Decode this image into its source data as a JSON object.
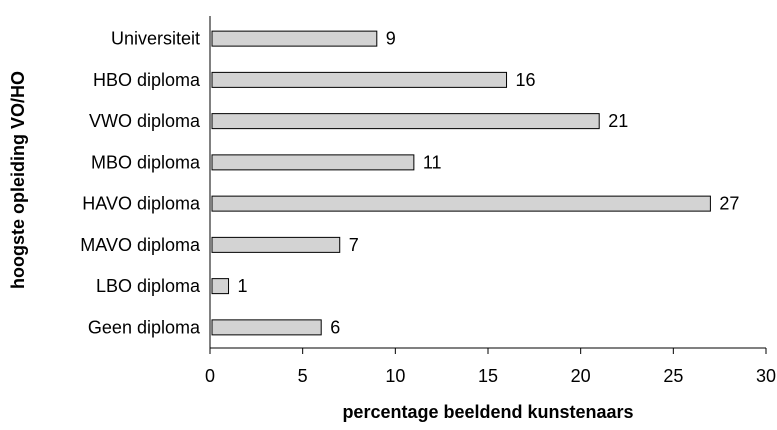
{
  "chart_data": {
    "type": "bar",
    "orientation": "horizontal",
    "categories": [
      "Universiteit",
      "HBO diploma",
      "VWO diploma",
      "MBO diploma",
      "HAVO diploma",
      "MAVO diploma",
      "LBO diploma",
      "Geen diploma"
    ],
    "values": [
      9,
      16,
      21,
      11,
      27,
      7,
      1,
      6
    ],
    "value_labels": [
      "9",
      "16",
      "21",
      "11",
      "27",
      "7",
      "1",
      "6"
    ],
    "title": "",
    "xlabel": "percentage beeldend kunstenaars",
    "ylabel": "hoogste opleiding VO/HO",
    "xlim": [
      0,
      30
    ],
    "xticks": [
      0,
      5,
      10,
      15,
      20,
      25,
      30
    ],
    "xtick_labels": [
      "0",
      "5",
      "10",
      "15",
      "20",
      "25",
      "30"
    ],
    "grid": false,
    "legend": false,
    "bar_color": "#d3d3d3",
    "bar_edge_color": "#000000"
  }
}
